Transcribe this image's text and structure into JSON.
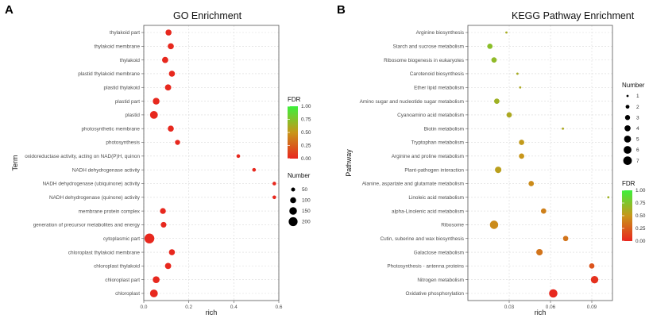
{
  "panels": {
    "A": "A",
    "B": "B"
  },
  "chart_data": [
    {
      "type": "scatter",
      "panel": "A",
      "title": "GO Enrichment",
      "xlabel": "rich",
      "ylabel": "Term",
      "xlim": [
        0.0,
        0.6
      ],
      "xticks": [
        "0.0",
        "0.2",
        "0.4",
        "0.6"
      ],
      "xtick_values": [
        0.0,
        0.2,
        0.4,
        0.6
      ],
      "grid": true,
      "size_legend": {
        "title": "Number",
        "values": [
          50,
          100,
          150,
          200
        ]
      },
      "color_legend": {
        "title": "FDR",
        "min": 0.0,
        "max": 1.0,
        "ticks": [
          "0.00",
          "0.25",
          "0.50",
          "0.75",
          "1.00"
        ],
        "tick_values": [
          0.0,
          0.25,
          0.5,
          0.75,
          1.0
        ],
        "low_color": "#e8261e",
        "mid_color": "#c8961a",
        "high_color": "#3cf03c"
      },
      "size_range": [
        40,
        230
      ],
      "terms": [
        "thylakoid part",
        "thylakoid membrane",
        "thylakoid",
        "plastid thylakoid membrane",
        "plastid thylakoid",
        "plastid part",
        "plastid",
        "photosynthetic membrane",
        "photosynthesis",
        "oxidoreductase activity, acting on NAD(P)H, quinon",
        "NADH dehydrogenase activity",
        "NADH dehydrogenase (ubiquinone) activity",
        "NADH dehydrogenase (quinone) activity",
        "membrane protein complex",
        "generation of precursor metabolites and energy",
        "cytoplasmic part",
        "chloroplast thylakoid membrane",
        "chloroplast thylakoid",
        "chloroplast part",
        "chloroplast"
      ],
      "rich": [
        0.11,
        0.12,
        0.095,
        0.125,
        0.108,
        0.055,
        0.045,
        0.12,
        0.15,
        0.42,
        0.49,
        0.58,
        0.58,
        0.085,
        0.088,
        0.025,
        0.125,
        0.108,
        0.055,
        0.045
      ],
      "number": [
        95,
        95,
        100,
        95,
        100,
        115,
        150,
        95,
        70,
        40,
        40,
        40,
        40,
        90,
        85,
        230,
        95,
        100,
        120,
        150
      ],
      "fdr": [
        0.01,
        0.01,
        0.01,
        0.01,
        0.01,
        0.01,
        0.01,
        0.01,
        0.01,
        0.01,
        0.01,
        0.01,
        0.01,
        0.01,
        0.01,
        0.01,
        0.01,
        0.01,
        0.01,
        0.01
      ]
    },
    {
      "type": "scatter",
      "panel": "B",
      "title": "KEGG Pathway Enrichment",
      "xlabel": "rich",
      "ylabel": "Pathway",
      "xlim": [
        0.0,
        0.105
      ],
      "xticks": [
        "0.03",
        "0.06",
        "0.09"
      ],
      "xtick_values": [
        0.03,
        0.06,
        0.09
      ],
      "grid": true,
      "size_legend": {
        "title": "Number",
        "values": [
          1,
          2,
          3,
          4,
          5,
          6,
          7
        ]
      },
      "color_legend": {
        "title": "FDR",
        "min": 0.0,
        "max": 1.0,
        "ticks": [
          "0.00",
          "0.25",
          "0.50",
          "0.75",
          "1.00"
        ],
        "tick_values": [
          0.0,
          0.25,
          0.5,
          0.75,
          1.0
        ],
        "low_color": "#e8261e",
        "mid_color": "#c8961a",
        "high_color": "#3cf03c"
      },
      "size_range": [
        1,
        7
      ],
      "terms": [
        "Arginine biosynthesis",
        "Starch and sucrose metabolism",
        "Ribosome biogenesis in eukaryotes",
        "Carotenoid biosynthesis",
        "Ether lipid metabolism",
        "Amino sugar and nucleotide sugar metabolism",
        "Cyanoamino acid metabolism",
        "Biotin metabolism",
        "Tryptophan metabolism",
        "Arginine and proline metabolism",
        "Plant-pathogen interaction",
        "Alanine, aspartate and glutamate metabolism",
        "Linoleic acid metabolism",
        "alpha-Linolenic acid metabolism",
        "Ribosome",
        "Cutin, suberine and wax biosynthesis",
        "Galactose metabolism",
        "Photosynthesis - antenna proteins",
        "Nitrogen metabolism",
        "Oxidative phosphorylation"
      ],
      "rich": [
        0.028,
        0.016,
        0.019,
        0.036,
        0.038,
        0.021,
        0.03,
        0.069,
        0.039,
        0.039,
        0.022,
        0.046,
        0.102,
        0.055,
        0.019,
        0.071,
        0.052,
        0.09,
        0.092,
        0.062
      ],
      "number": [
        1,
        3,
        3,
        1,
        1,
        3,
        3,
        1,
        3,
        3,
        4,
        3,
        1,
        3,
        6,
        3,
        4,
        3,
        5,
        6
      ],
      "fdr": [
        0.62,
        0.72,
        0.7,
        0.62,
        0.6,
        0.65,
        0.6,
        0.6,
        0.52,
        0.5,
        0.55,
        0.45,
        0.65,
        0.4,
        0.45,
        0.35,
        0.35,
        0.2,
        0.05,
        0.01
      ]
    }
  ]
}
